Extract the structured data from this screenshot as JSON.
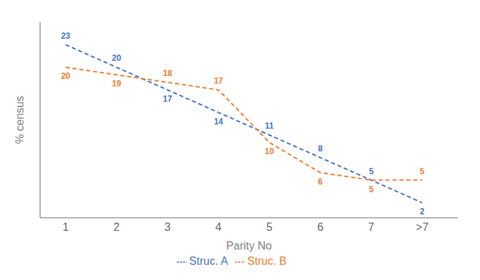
{
  "chart_data": {
    "type": "line",
    "x": [
      1,
      2,
      3,
      4,
      5,
      6,
      7,
      8
    ],
    "xlim": [
      0.5,
      8.7
    ],
    "xticks": [
      1,
      2,
      3,
      4,
      5,
      6,
      7,
      {
        "value": 8,
        "label": ">7"
      }
    ],
    "ylim": [
      0,
      26
    ],
    "xlabel": "Parity No",
    "ylabel": "% census",
    "series": [
      {
        "name": "Struc. A",
        "color": "#4472C4",
        "line_style": "dashed",
        "values": [
          23,
          20,
          17,
          14,
          11,
          8,
          5,
          2
        ]
      },
      {
        "name": "Struc. B",
        "color": "#ED7D31",
        "line_style": "dashed",
        "values": [
          20,
          19,
          18,
          17,
          10,
          6,
          5,
          5
        ]
      }
    ],
    "data_labels": true,
    "tick_labels": "x",
    "grid": false,
    "legend": "bottom"
  }
}
